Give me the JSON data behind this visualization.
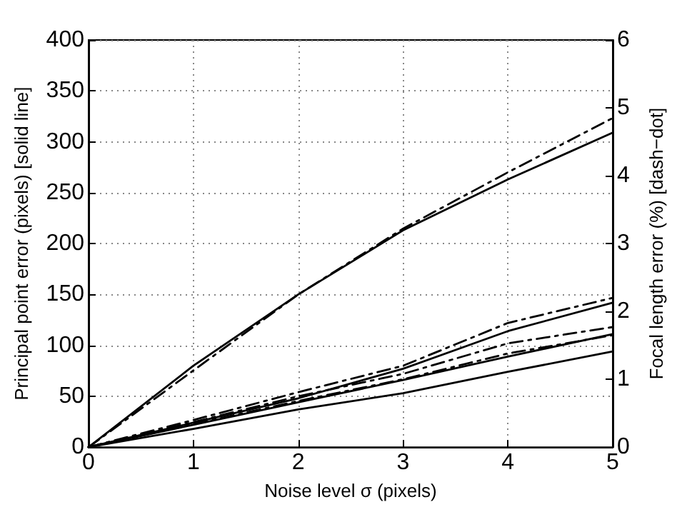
{
  "chart_data": {
    "type": "line",
    "xlabel": "Noise level σ (pixels)",
    "ylabel": "Principal point error (pixels) [solid line]",
    "y2label": "Focal length error (%) [dash−dot]",
    "xlim": [
      0,
      5
    ],
    "xticks": [
      0,
      1,
      2,
      3,
      4,
      5
    ],
    "ylim": [
      0,
      400
    ],
    "yticks": [
      0,
      50,
      100,
      150,
      200,
      250,
      300,
      350,
      400
    ],
    "y2lim": [
      0,
      6
    ],
    "y2ticks": [
      0,
      1,
      2,
      3,
      4,
      5,
      6
    ],
    "grid": true,
    "marker": "none",
    "x": [
      0,
      1,
      2,
      3,
      4,
      5
    ],
    "series": [
      {
        "color": "#000000",
        "line_style": "solid",
        "values": [
          0,
          80,
          150,
          213,
          263,
          309
        ]
      },
      {
        "color": "#000000",
        "line_style": "solid",
        "values": [
          0,
          24,
          48,
          77,
          114,
          142
        ]
      },
      {
        "color": "#000000",
        "line_style": "solid",
        "values": [
          0,
          22,
          44,
          66,
          89,
          111
        ]
      },
      {
        "color": "#000000",
        "line_style": "solid",
        "values": [
          0,
          18,
          37,
          53,
          74,
          94
        ]
      },
      {
        "color": "#000000",
        "line_style": "dashdot",
        "axis": "y2",
        "values": [
          0,
          1.13,
          2.25,
          3.22,
          4.05,
          4.85
        ]
      },
      {
        "color": "#000000",
        "line_style": "dashdot",
        "axis": "y2",
        "values": [
          0,
          0.4,
          0.81,
          1.2,
          1.83,
          2.2
        ]
      },
      {
        "color": "#000000",
        "line_style": "dashdot",
        "axis": "y2",
        "values": [
          0,
          0.37,
          0.75,
          1.08,
          1.53,
          1.77
        ]
      },
      {
        "color": "#000000",
        "line_style": "dashdot",
        "axis": "y2",
        "values": [
          0,
          0.34,
          0.68,
          1.0,
          1.38,
          1.65
        ]
      }
    ]
  }
}
